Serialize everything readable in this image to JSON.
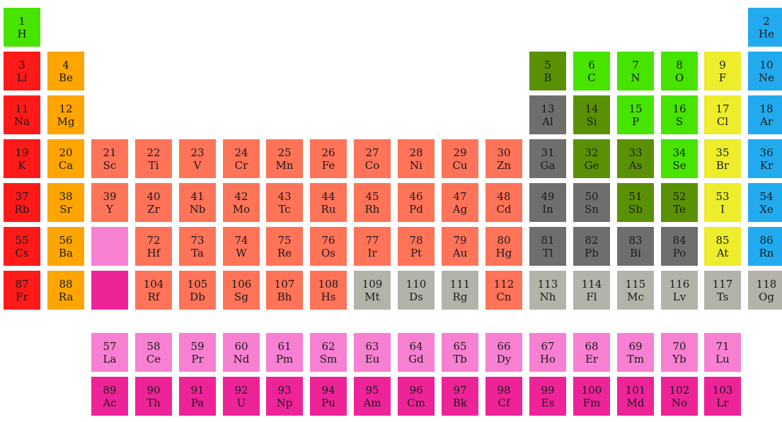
{
  "colors": {
    "alkali": "#ff1a1a",
    "alkaline": "#ffa500",
    "transition": "#ff7358",
    "post_transition": "#6e6e6e",
    "metalloid": "#5a9104",
    "nonmetal": "#47e400",
    "halogen": "#eded2c",
    "noble": "#22aaee",
    "lanthanide": "#f880d2",
    "actinide": "#ef2398",
    "unknown": "#b3b3aa"
  },
  "elements": [
    {
      "n": "1",
      "s": "H",
      "row": 1,
      "col": 1,
      "cat": "nonmetal"
    },
    {
      "n": "2",
      "s": "He",
      "row": 1,
      "col": 18,
      "cat": "noble"
    },
    {
      "n": "3",
      "s": "Li",
      "row": 2,
      "col": 1,
      "cat": "alkali"
    },
    {
      "n": "4",
      "s": "Be",
      "row": 2,
      "col": 2,
      "cat": "alkaline"
    },
    {
      "n": "5",
      "s": "B",
      "row": 2,
      "col": 13,
      "cat": "metalloid"
    },
    {
      "n": "6",
      "s": "C",
      "row": 2,
      "col": 14,
      "cat": "nonmetal"
    },
    {
      "n": "7",
      "s": "N",
      "row": 2,
      "col": 15,
      "cat": "nonmetal"
    },
    {
      "n": "8",
      "s": "O",
      "row": 2,
      "col": 16,
      "cat": "nonmetal"
    },
    {
      "n": "9",
      "s": "F",
      "row": 2,
      "col": 17,
      "cat": "halogen"
    },
    {
      "n": "10",
      "s": "Ne",
      "row": 2,
      "col": 18,
      "cat": "noble"
    },
    {
      "n": "11",
      "s": "Na",
      "row": 3,
      "col": 1,
      "cat": "alkali"
    },
    {
      "n": "12",
      "s": "Mg",
      "row": 3,
      "col": 2,
      "cat": "alkaline"
    },
    {
      "n": "13",
      "s": "Al",
      "row": 3,
      "col": 13,
      "cat": "post_transition"
    },
    {
      "n": "14",
      "s": "Si",
      "row": 3,
      "col": 14,
      "cat": "metalloid"
    },
    {
      "n": "15",
      "s": "P",
      "row": 3,
      "col": 15,
      "cat": "nonmetal"
    },
    {
      "n": "16",
      "s": "S",
      "row": 3,
      "col": 16,
      "cat": "nonmetal"
    },
    {
      "n": "17",
      "s": "Cl",
      "row": 3,
      "col": 17,
      "cat": "halogen"
    },
    {
      "n": "18",
      "s": "Ar",
      "row": 3,
      "col": 18,
      "cat": "noble"
    },
    {
      "n": "19",
      "s": "K",
      "row": 4,
      "col": 1,
      "cat": "alkali"
    },
    {
      "n": "20",
      "s": "Ca",
      "row": 4,
      "col": 2,
      "cat": "alkaline"
    },
    {
      "n": "21",
      "s": "Sc",
      "row": 4,
      "col": 3,
      "cat": "transition"
    },
    {
      "n": "22",
      "s": "Ti",
      "row": 4,
      "col": 4,
      "cat": "transition"
    },
    {
      "n": "23",
      "s": "V",
      "row": 4,
      "col": 5,
      "cat": "transition"
    },
    {
      "n": "24",
      "s": "Cr",
      "row": 4,
      "col": 6,
      "cat": "transition"
    },
    {
      "n": "25",
      "s": "Mn",
      "row": 4,
      "col": 7,
      "cat": "transition"
    },
    {
      "n": "26",
      "s": "Fe",
      "row": 4,
      "col": 8,
      "cat": "transition"
    },
    {
      "n": "27",
      "s": "Co",
      "row": 4,
      "col": 9,
      "cat": "transition"
    },
    {
      "n": "28",
      "s": "Ni",
      "row": 4,
      "col": 10,
      "cat": "transition"
    },
    {
      "n": "29",
      "s": "Cu",
      "row": 4,
      "col": 11,
      "cat": "transition"
    },
    {
      "n": "30",
      "s": "Zn",
      "row": 4,
      "col": 12,
      "cat": "transition"
    },
    {
      "n": "31",
      "s": "Ga",
      "row": 4,
      "col": 13,
      "cat": "post_transition"
    },
    {
      "n": "32",
      "s": "Ge",
      "row": 4,
      "col": 14,
      "cat": "metalloid"
    },
    {
      "n": "33",
      "s": "As",
      "row": 4,
      "col": 15,
      "cat": "metalloid"
    },
    {
      "n": "34",
      "s": "Se",
      "row": 4,
      "col": 16,
      "cat": "nonmetal"
    },
    {
      "n": "35",
      "s": "Br",
      "row": 4,
      "col": 17,
      "cat": "halogen"
    },
    {
      "n": "36",
      "s": "Kr",
      "row": 4,
      "col": 18,
      "cat": "noble"
    },
    {
      "n": "37",
      "s": "Rb",
      "row": 5,
      "col": 1,
      "cat": "alkali"
    },
    {
      "n": "38",
      "s": "Sr",
      "row": 5,
      "col": 2,
      "cat": "alkaline"
    },
    {
      "n": "39",
      "s": "Y",
      "row": 5,
      "col": 3,
      "cat": "transition"
    },
    {
      "n": "40",
      "s": "Zr",
      "row": 5,
      "col": 4,
      "cat": "transition"
    },
    {
      "n": "41",
      "s": "Nb",
      "row": 5,
      "col": 5,
      "cat": "transition"
    },
    {
      "n": "42",
      "s": "Mo",
      "row": 5,
      "col": 6,
      "cat": "transition"
    },
    {
      "n": "43",
      "s": "Tc",
      "row": 5,
      "col": 7,
      "cat": "transition"
    },
    {
      "n": "44",
      "s": "Ru",
      "row": 5,
      "col": 8,
      "cat": "transition"
    },
    {
      "n": "45",
      "s": "Rh",
      "row": 5,
      "col": 9,
      "cat": "transition"
    },
    {
      "n": "46",
      "s": "Pd",
      "row": 5,
      "col": 10,
      "cat": "transition"
    },
    {
      "n": "47",
      "s": "Ag",
      "row": 5,
      "col": 11,
      "cat": "transition"
    },
    {
      "n": "48",
      "s": "Cd",
      "row": 5,
      "col": 12,
      "cat": "transition"
    },
    {
      "n": "49",
      "s": "In",
      "row": 5,
      "col": 13,
      "cat": "post_transition"
    },
    {
      "n": "50",
      "s": "Sn",
      "row": 5,
      "col": 14,
      "cat": "post_transition"
    },
    {
      "n": "51",
      "s": "Sb",
      "row": 5,
      "col": 15,
      "cat": "metalloid"
    },
    {
      "n": "52",
      "s": "Te",
      "row": 5,
      "col": 16,
      "cat": "metalloid"
    },
    {
      "n": "53",
      "s": "I",
      "row": 5,
      "col": 17,
      "cat": "halogen"
    },
    {
      "n": "54",
      "s": "Xe",
      "row": 5,
      "col": 18,
      "cat": "noble"
    },
    {
      "n": "55",
      "s": "Cs",
      "row": 6,
      "col": 1,
      "cat": "alkali"
    },
    {
      "n": "56",
      "s": "Ba",
      "row": 6,
      "col": 2,
      "cat": "alkaline"
    },
    {
      "n": "",
      "s": "",
      "row": 6,
      "col": 3,
      "cat": "lanthanide"
    },
    {
      "n": "72",
      "s": "Hf",
      "row": 6,
      "col": 4,
      "cat": "transition"
    },
    {
      "n": "73",
      "s": "Ta",
      "row": 6,
      "col": 5,
      "cat": "transition"
    },
    {
      "n": "74",
      "s": "W",
      "row": 6,
      "col": 6,
      "cat": "transition"
    },
    {
      "n": "75",
      "s": "Re",
      "row": 6,
      "col": 7,
      "cat": "transition"
    },
    {
      "n": "76",
      "s": "Os",
      "row": 6,
      "col": 8,
      "cat": "transition"
    },
    {
      "n": "77",
      "s": "Ir",
      "row": 6,
      "col": 9,
      "cat": "transition"
    },
    {
      "n": "78",
      "s": "Pt",
      "row": 6,
      "col": 10,
      "cat": "transition"
    },
    {
      "n": "79",
      "s": "Au",
      "row": 6,
      "col": 11,
      "cat": "transition"
    },
    {
      "n": "80",
      "s": "Hg",
      "row": 6,
      "col": 12,
      "cat": "transition"
    },
    {
      "n": "81",
      "s": "Tl",
      "row": 6,
      "col": 13,
      "cat": "post_transition"
    },
    {
      "n": "82",
      "s": "Pb",
      "row": 6,
      "col": 14,
      "cat": "post_transition"
    },
    {
      "n": "83",
      "s": "Bi",
      "row": 6,
      "col": 15,
      "cat": "post_transition"
    },
    {
      "n": "84",
      "s": "Po",
      "row": 6,
      "col": 16,
      "cat": "post_transition"
    },
    {
      "n": "85",
      "s": "At",
      "row": 6,
      "col": 17,
      "cat": "halogen"
    },
    {
      "n": "86",
      "s": "Rn",
      "row": 6,
      "col": 18,
      "cat": "noble"
    },
    {
      "n": "87",
      "s": "Fr",
      "row": 7,
      "col": 1,
      "cat": "alkali"
    },
    {
      "n": "88",
      "s": "Ra",
      "row": 7,
      "col": 2,
      "cat": "alkaline"
    },
    {
      "n": "",
      "s": "",
      "row": 7,
      "col": 3,
      "cat": "actinide"
    },
    {
      "n": "104",
      "s": "Rf",
      "row": 7,
      "col": 4,
      "cat": "transition"
    },
    {
      "n": "105",
      "s": "Db",
      "row": 7,
      "col": 5,
      "cat": "transition"
    },
    {
      "n": "106",
      "s": "Sg",
      "row": 7,
      "col": 6,
      "cat": "transition"
    },
    {
      "n": "107",
      "s": "Bh",
      "row": 7,
      "col": 7,
      "cat": "transition"
    },
    {
      "n": "108",
      "s": "Hs",
      "row": 7,
      "col": 8,
      "cat": "transition"
    },
    {
      "n": "109",
      "s": "Mt",
      "row": 7,
      "col": 9,
      "cat": "unknown"
    },
    {
      "n": "110",
      "s": "Ds",
      "row": 7,
      "col": 10,
      "cat": "unknown"
    },
    {
      "n": "111",
      "s": "Rg",
      "row": 7,
      "col": 11,
      "cat": "unknown"
    },
    {
      "n": "112",
      "s": "Cn",
      "row": 7,
      "col": 12,
      "cat": "transition"
    },
    {
      "n": "113",
      "s": "Nh",
      "row": 7,
      "col": 13,
      "cat": "unknown"
    },
    {
      "n": "114",
      "s": "Fl",
      "row": 7,
      "col": 14,
      "cat": "unknown"
    },
    {
      "n": "115",
      "s": "Mc",
      "row": 7,
      "col": 15,
      "cat": "unknown"
    },
    {
      "n": "116",
      "s": "Lv",
      "row": 7,
      "col": 16,
      "cat": "unknown"
    },
    {
      "n": "117",
      "s": "Ts",
      "row": 7,
      "col": 17,
      "cat": "unknown"
    },
    {
      "n": "118",
      "s": "Og",
      "row": 7,
      "col": 18,
      "cat": "unknown"
    },
    {
      "n": "57",
      "s": "La",
      "row": 9,
      "col": 3,
      "cat": "lanthanide"
    },
    {
      "n": "58",
      "s": "Ce",
      "row": 9,
      "col": 4,
      "cat": "lanthanide"
    },
    {
      "n": "59",
      "s": "Pr",
      "row": 9,
      "col": 5,
      "cat": "lanthanide"
    },
    {
      "n": "60",
      "s": "Nd",
      "row": 9,
      "col": 6,
      "cat": "lanthanide"
    },
    {
      "n": "61",
      "s": "Pm",
      "row": 9,
      "col": 7,
      "cat": "lanthanide"
    },
    {
      "n": "62",
      "s": "Sm",
      "row": 9,
      "col": 8,
      "cat": "lanthanide"
    },
    {
      "n": "63",
      "s": "Eu",
      "row": 9,
      "col": 9,
      "cat": "lanthanide"
    },
    {
      "n": "64",
      "s": "Gd",
      "row": 9,
      "col": 10,
      "cat": "lanthanide"
    },
    {
      "n": "65",
      "s": "Tb",
      "row": 9,
      "col": 11,
      "cat": "lanthanide"
    },
    {
      "n": "66",
      "s": "Dy",
      "row": 9,
      "col": 12,
      "cat": "lanthanide"
    },
    {
      "n": "67",
      "s": "Ho",
      "row": 9,
      "col": 13,
      "cat": "lanthanide"
    },
    {
      "n": "68",
      "s": "Er",
      "row": 9,
      "col": 14,
      "cat": "lanthanide"
    },
    {
      "n": "69",
      "s": "Tm",
      "row": 9,
      "col": 15,
      "cat": "lanthanide"
    },
    {
      "n": "70",
      "s": "Yb",
      "row": 9,
      "col": 16,
      "cat": "lanthanide"
    },
    {
      "n": "71",
      "s": "Lu",
      "row": 9,
      "col": 17,
      "cat": "lanthanide"
    },
    {
      "n": "89",
      "s": "Ac",
      "row": 10,
      "col": 3,
      "cat": "actinide"
    },
    {
      "n": "90",
      "s": "Th",
      "row": 10,
      "col": 4,
      "cat": "actinide"
    },
    {
      "n": "91",
      "s": "Pa",
      "row": 10,
      "col": 5,
      "cat": "actinide"
    },
    {
      "n": "92",
      "s": "U",
      "row": 10,
      "col": 6,
      "cat": "actinide"
    },
    {
      "n": "93",
      "s": "Np",
      "row": 10,
      "col": 7,
      "cat": "actinide"
    },
    {
      "n": "94",
      "s": "Pu",
      "row": 10,
      "col": 8,
      "cat": "actinide"
    },
    {
      "n": "95",
      "s": "Am",
      "row": 10,
      "col": 9,
      "cat": "actinide"
    },
    {
      "n": "96",
      "s": "Cm",
      "row": 10,
      "col": 10,
      "cat": "actinide"
    },
    {
      "n": "97",
      "s": "Bk",
      "row": 10,
      "col": 11,
      "cat": "actinide"
    },
    {
      "n": "98",
      "s": "Cf",
      "row": 10,
      "col": 12,
      "cat": "actinide"
    },
    {
      "n": "99",
      "s": "Es",
      "row": 10,
      "col": 13,
      "cat": "actinide"
    },
    {
      "n": "100",
      "s": "Fm",
      "row": 10,
      "col": 14,
      "cat": "actinide"
    },
    {
      "n": "101",
      "s": "Md",
      "row": 10,
      "col": 15,
      "cat": "actinide"
    },
    {
      "n": "102",
      "s": "No",
      "row": 10,
      "col": 16,
      "cat": "actinide"
    },
    {
      "n": "103",
      "s": "Lr",
      "row": 10,
      "col": 17,
      "cat": "actinide"
    }
  ]
}
